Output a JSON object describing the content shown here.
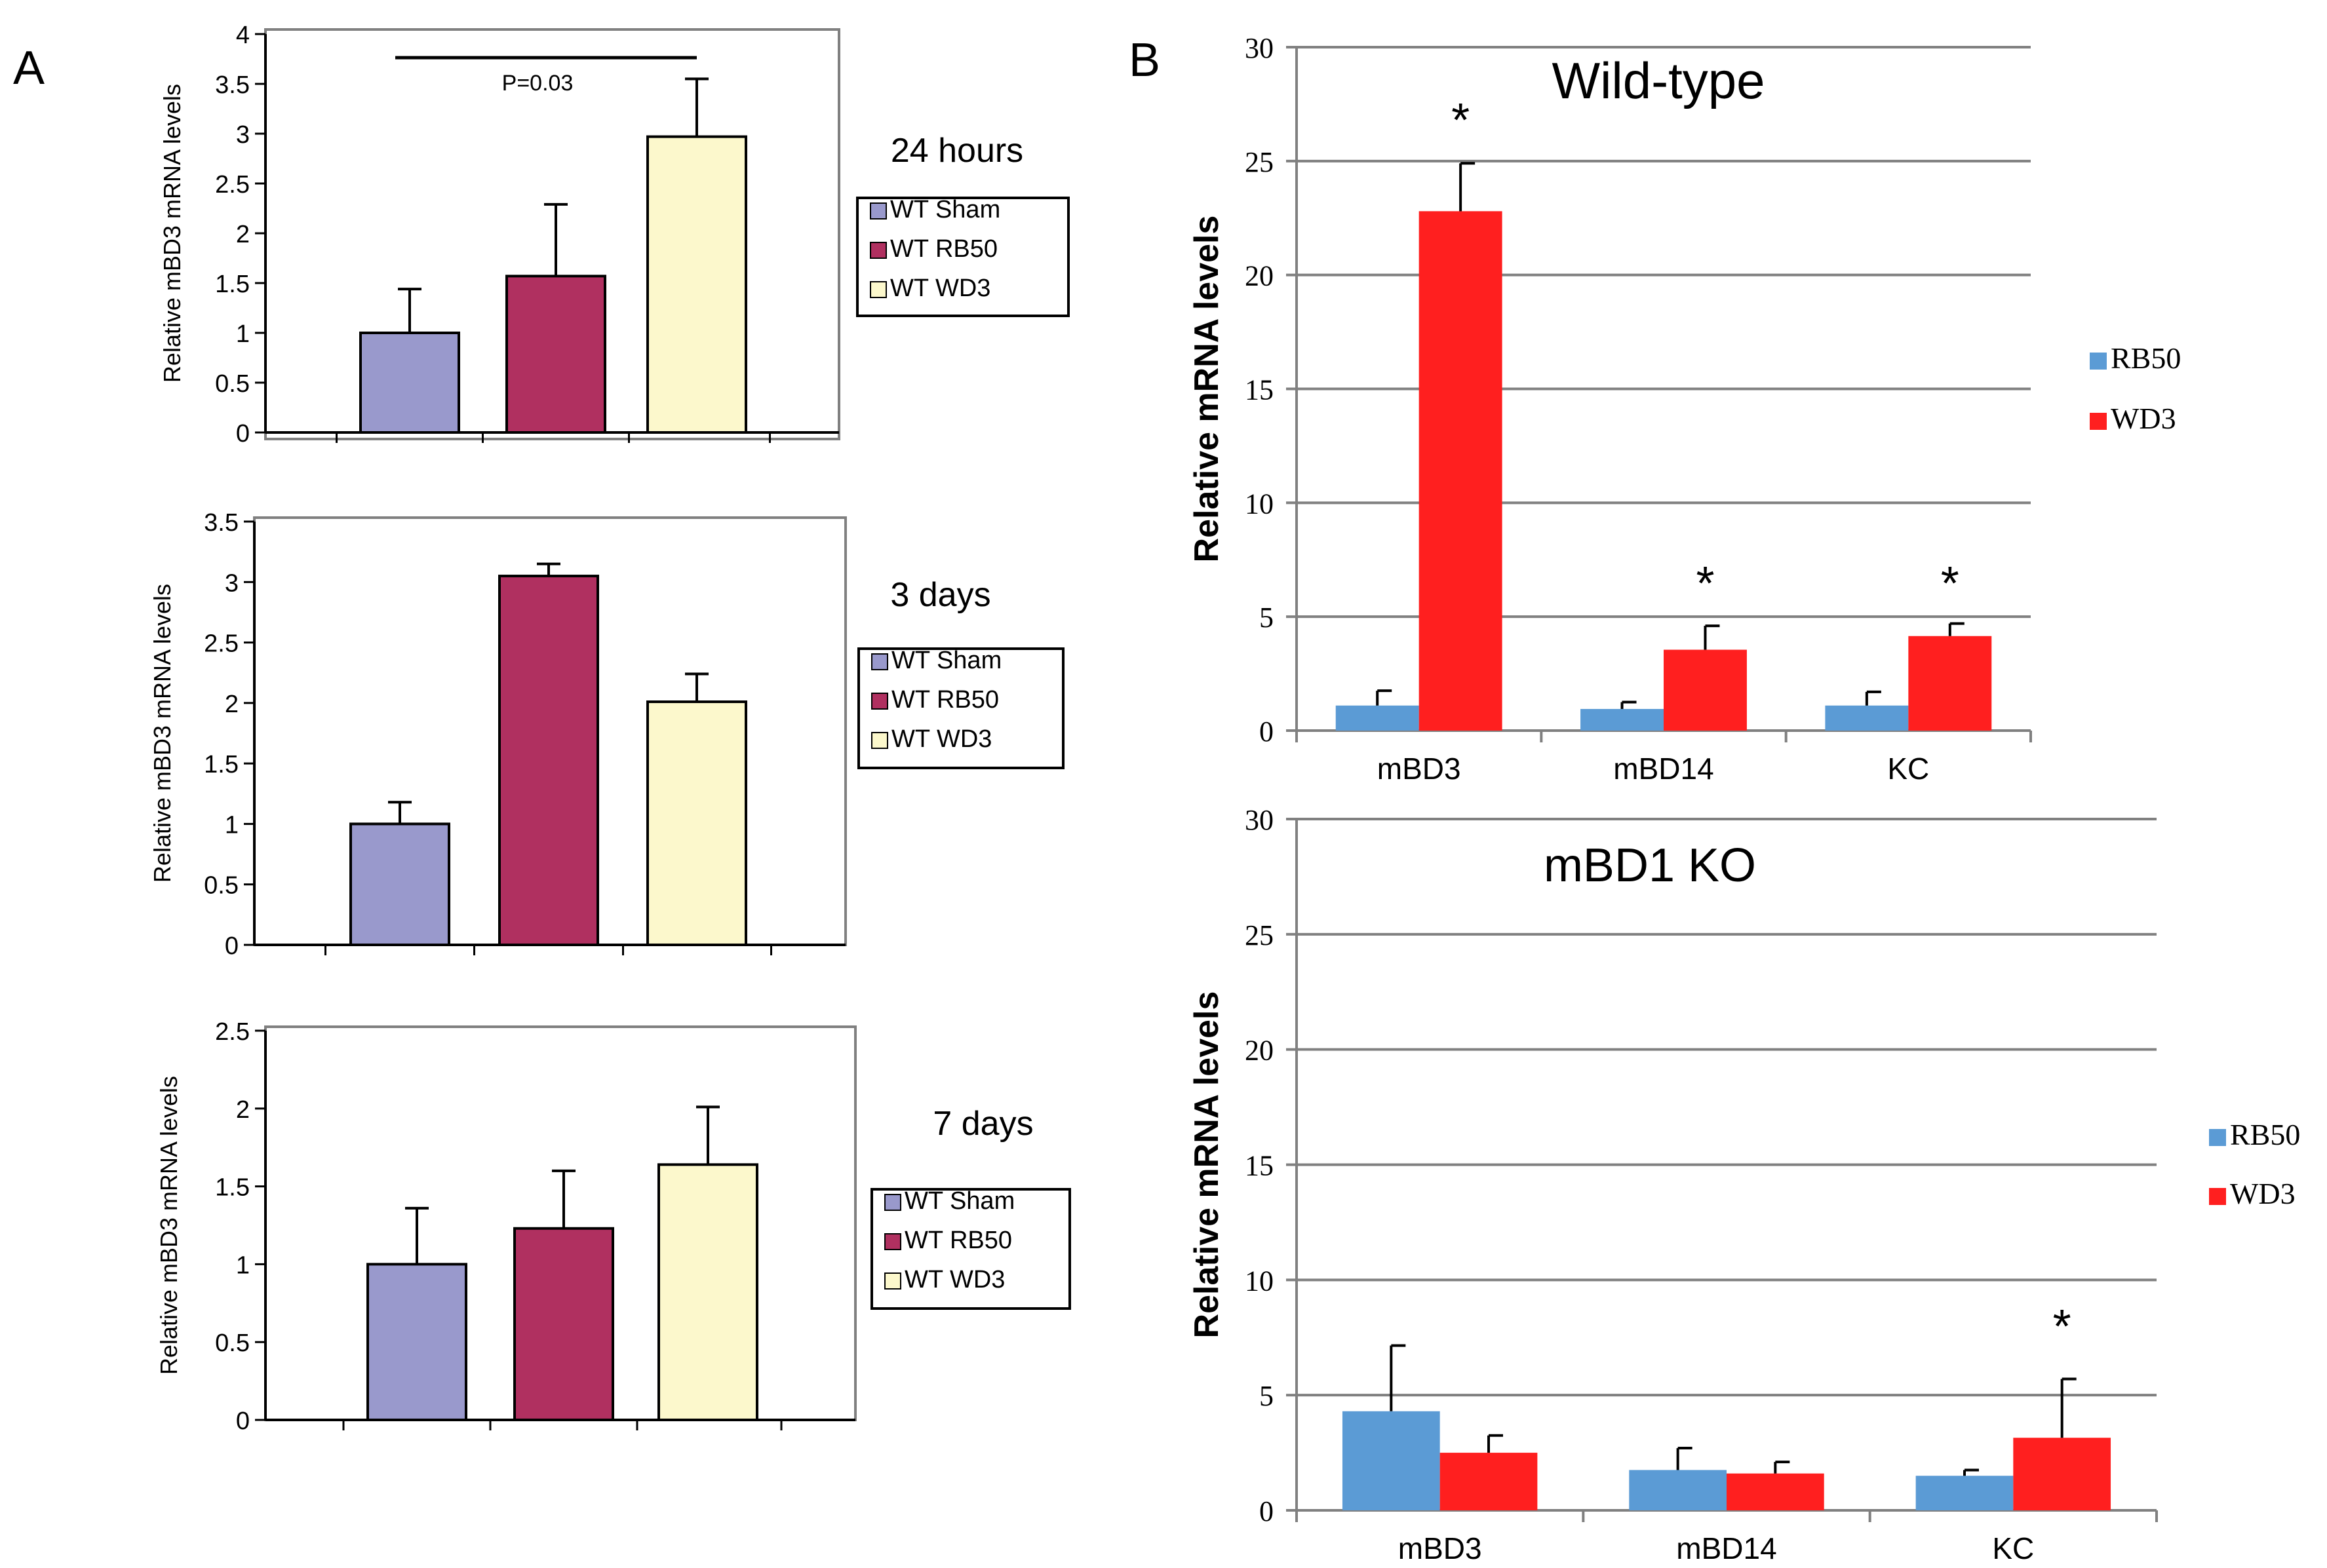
{
  "panel_labels": {
    "a": "A",
    "b": "B"
  },
  "colors": {
    "sham": "#9999cc",
    "rb50_a": "#b03060",
    "wd3_a": "#fcf8cc",
    "rb50_b": "#5b9bd5",
    "wd3_b": "#ff1f1f",
    "axis": "#000000",
    "grid": "#808080",
    "frame": "#808080"
  },
  "chart_data": [
    {
      "type": "bar",
      "panel": "A",
      "title": "24 hours",
      "ylabel": "Relative mBD3 mRNA levels",
      "xlabel": "",
      "categories": [
        "WT Sham",
        "WT RB50",
        "WT WD3"
      ],
      "values": [
        1.0,
        1.57,
        2.97
      ],
      "errors": [
        0.44,
        0.72,
        0.58
      ],
      "ylim": [
        0,
        4
      ],
      "yticks": [
        "0",
        "0.5",
        "1",
        "1.5",
        "2",
        "2.5",
        "3",
        "3.5",
        "4"
      ],
      "legend": [
        "WT Sham",
        "WT RB50",
        "WT WD3"
      ],
      "annotation": "P=0.03"
    },
    {
      "type": "bar",
      "panel": "A",
      "title": "3 days",
      "ylabel": "Relative mBD3 mRNA levels",
      "xlabel": "",
      "categories": [
        "WT Sham",
        "WT RB50",
        "WT WD3"
      ],
      "values": [
        1.0,
        3.05,
        2.01
      ],
      "errors": [
        0.18,
        0.1,
        0.23
      ],
      "ylim": [
        0,
        3.5
      ],
      "yticks": [
        "0",
        "0.5",
        "1",
        "1.5",
        "2",
        "2.5",
        "3",
        "3.5"
      ],
      "legend": [
        "WT Sham",
        "WT RB50",
        "WT WD3"
      ]
    },
    {
      "type": "bar",
      "panel": "A",
      "title": "7 days",
      "ylabel": "Relative mBD3 mRNA levels",
      "xlabel": "",
      "categories": [
        "WT Sham",
        "WT RB50",
        "WT WD3"
      ],
      "values": [
        1.0,
        1.23,
        1.64
      ],
      "errors": [
        0.36,
        0.37,
        0.37
      ],
      "ylim": [
        0,
        2.5
      ],
      "yticks": [
        "0",
        "0.5",
        "1",
        "1.5",
        "2",
        "2.5"
      ],
      "legend": [
        "WT Sham",
        "WT RB50",
        "WT WD3"
      ]
    },
    {
      "type": "bar",
      "panel": "B",
      "title": "Wild-type",
      "ylabel": "Relative mRNA levels",
      "xlabel": "",
      "categories": [
        "mBD3",
        "mBD14",
        "KC"
      ],
      "series": [
        {
          "name": "RB50",
          "values": [
            1.1,
            0.95,
            1.1
          ],
          "errors": [
            0.65,
            0.3,
            0.6
          ]
        },
        {
          "name": "WD3",
          "values": [
            22.8,
            3.55,
            4.15
          ],
          "errors": [
            2.1,
            1.05,
            0.55
          ]
        }
      ],
      "ylim": [
        0,
        30
      ],
      "yticks": [
        "0",
        "5",
        "10",
        "15",
        "20",
        "25",
        "30"
      ],
      "significance": [
        "*",
        "*",
        "*"
      ]
    },
    {
      "type": "bar",
      "panel": "B",
      "title": "mBD1 KO",
      "ylabel": "Relative mRNA levels",
      "xlabel": "",
      "categories": [
        "mBD3",
        "mBD14",
        "KC"
      ],
      "series": [
        {
          "name": "RB50",
          "values": [
            4.3,
            1.75,
            1.5
          ],
          "errors": [
            2.85,
            0.95,
            0.25
          ]
        },
        {
          "name": "WD3",
          "values": [
            2.5,
            1.6,
            3.15
          ],
          "errors": [
            0.75,
            0.5,
            2.55
          ]
        }
      ],
      "ylim": [
        0,
        30
      ],
      "yticks": [
        "0",
        "5",
        "10",
        "15",
        "20",
        "25",
        "30"
      ],
      "significance": [
        "",
        "",
        "*"
      ]
    }
  ]
}
